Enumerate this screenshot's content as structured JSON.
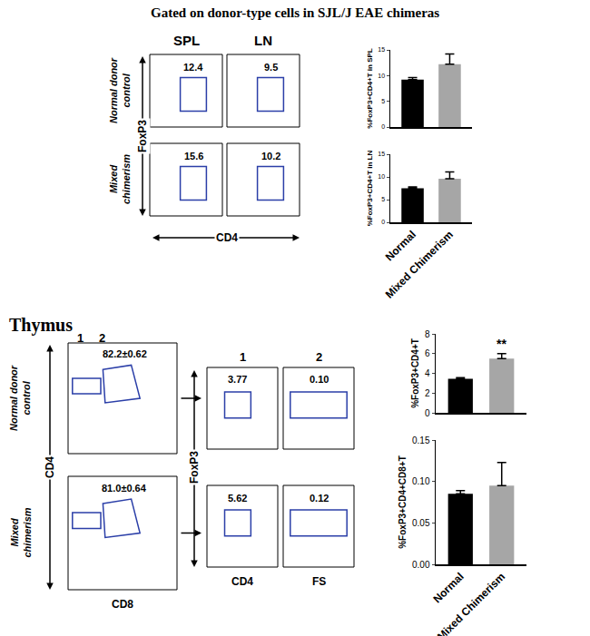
{
  "title": "Gated on donor-type cells in SJL/J EAE chimeras",
  "top_panels": {
    "columns": [
      "SPL",
      "LN"
    ],
    "rows": [
      "Normal donor control",
      "Mixed chimerism"
    ],
    "y_label": "FoxP3",
    "x_label": "CD4",
    "gate_values": [
      [
        "12.4",
        "9.5"
      ],
      [
        "15.6",
        "10.2"
      ]
    ]
  },
  "thymus": {
    "heading": "Thymus",
    "rows": [
      "Normal donor control",
      "Mixed chimerism"
    ],
    "gate_labels": [
      "1",
      "2"
    ],
    "cd4cd8_values": [
      "82.2±0.62",
      "81.0±0.64"
    ],
    "cd4cd8_y_label": "CD4",
    "cd4cd8_x_label": "CD8",
    "sub_columns": [
      "1",
      "2"
    ],
    "sub_y_label": "FoxP3",
    "sub_x_labels": [
      "CD4",
      "FS"
    ],
    "sub_values": [
      [
        "3.77",
        "0.10"
      ],
      [
        "5.62",
        "0.12"
      ]
    ]
  },
  "chart_data": [
    {
      "type": "bar",
      "y_label": "%FoxP3+CD4+T in SPL",
      "categories": [
        "Normal",
        "Mixed Chimerism"
      ],
      "values": [
        9.2,
        12.2
      ],
      "errors": [
        0.4,
        2.0
      ],
      "colors": [
        "#000000",
        "#a6a6a6"
      ],
      "ylim": [
        0,
        15
      ],
      "yticks": [
        0,
        5,
        10,
        15
      ],
      "grid": false,
      "tick_labels": "y"
    },
    {
      "type": "bar",
      "y_label": "%FoxP3+CD4+T in LN",
      "categories": [
        "Normal",
        "Mixed Chimerism"
      ],
      "values": [
        7.5,
        9.6
      ],
      "errors": [
        0.3,
        1.5
      ],
      "colors": [
        "#000000",
        "#a6a6a6"
      ],
      "ylim": [
        0,
        15
      ],
      "yticks": [
        0,
        5,
        10,
        15
      ],
      "grid": false,
      "tick_labels": true
    },
    {
      "type": "bar",
      "y_label": "%FoxP3+CD4+T",
      "categories": [
        "Normal",
        "Mixed Chimerism"
      ],
      "values": [
        3.45,
        5.5
      ],
      "errors": [
        0.12,
        0.5
      ],
      "colors": [
        "#000000",
        "#a6a6a6"
      ],
      "ylim": [
        0,
        8
      ],
      "yticks": [
        0,
        2,
        4,
        6,
        8
      ],
      "grid": false,
      "tick_labels": "y",
      "annotations": [
        {
          "text": "**",
          "category": "Mixed Chimerism"
        }
      ]
    },
    {
      "type": "bar",
      "y_label": "%FoxP3+CD4+CD8+T",
      "categories": [
        "Normal",
        "Mixed Chimerism"
      ],
      "values": [
        0.085,
        0.095
      ],
      "errors": [
        0.004,
        0.028
      ],
      "colors": [
        "#000000",
        "#a6a6a6"
      ],
      "ylim": [
        0,
        0.15
      ],
      "yticks": [
        {
          "value": 0,
          "label": "0.00"
        },
        {
          "value": 0.05,
          "label": "0.05"
        },
        {
          "value": 0.1,
          "label": "0.10"
        },
        {
          "value": 0.15,
          "label": "0.15"
        }
      ],
      "grid": false,
      "tick_labels": true
    }
  ]
}
